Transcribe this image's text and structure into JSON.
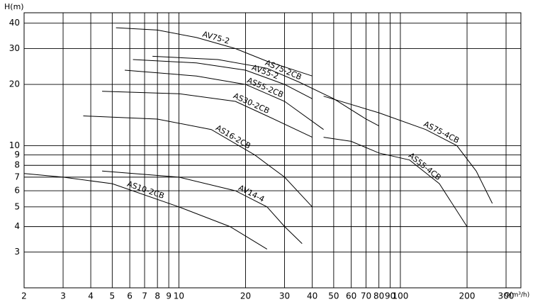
{
  "chart_data": {
    "type": "line",
    "x_label": "Q(m³/h)",
    "y_label": "H(m)",
    "log_x": true,
    "log_y": true,
    "grid": true,
    "color": "#000000",
    "xlim": [
      2,
      350
    ],
    "ylim": [
      2,
      45
    ],
    "xticks": [
      2,
      3,
      4,
      5,
      6,
      7,
      8,
      9,
      10,
      20,
      30,
      40,
      50,
      60,
      70,
      80,
      90,
      100,
      200,
      300
    ],
    "yticks": [
      3,
      4,
      5,
      6,
      7,
      8,
      9,
      10,
      20,
      30,
      40
    ],
    "series": [
      {
        "name": "AV75-2",
        "x": [
          5.2,
          8,
          12,
          18,
          25,
          40
        ],
        "values": [
          38,
          37,
          34,
          30,
          26,
          22
        ]
      },
      {
        "name": "AS75-2CB",
        "x": [
          7.6,
          15,
          25,
          35,
          50,
          70,
          80
        ],
        "values": [
          27.5,
          26.5,
          24,
          20.5,
          17,
          13.5,
          12.5
        ]
      },
      {
        "name": "AV55-2",
        "x": [
          6.2,
          12,
          20,
          30,
          40
        ],
        "values": [
          26.5,
          25.5,
          23.5,
          20,
          17
        ]
      },
      {
        "name": "AS55-2CB",
        "x": [
          5.7,
          12,
          20,
          30,
          45
        ],
        "values": [
          23.5,
          22,
          20,
          16.5,
          12
        ]
      },
      {
        "name": "AS30-2CB",
        "x": [
          4.5,
          10,
          18,
          25,
          40
        ],
        "values": [
          18.5,
          18,
          16.5,
          14,
          11
        ]
      },
      {
        "name": "AS16-2CB",
        "x": [
          3.7,
          8,
          14,
          22,
          30,
          40
        ],
        "values": [
          14,
          13.5,
          12,
          9,
          7,
          5
        ]
      },
      {
        "name": "AS75-4CB",
        "x": [
          45,
          80,
          130,
          180,
          220,
          260
        ],
        "values": [
          17.5,
          14.5,
          12,
          10,
          7.5,
          5.2
        ]
      },
      {
        "name": "AS55-4CB",
        "x": [
          45,
          60,
          80,
          110,
          150,
          200
        ],
        "values": [
          11,
          10.5,
          9.2,
          8.5,
          6.5,
          4
        ]
      },
      {
        "name": "AV14-4",
        "x": [
          4.5,
          10,
          18,
          25,
          30,
          36
        ],
        "values": [
          7.5,
          7,
          6,
          5,
          4,
          3.3
        ]
      },
      {
        "name": "AS10-2CB",
        "x": [
          2,
          3,
          5,
          10,
          17,
          25
        ],
        "values": [
          7.3,
          7,
          6.5,
          5,
          4,
          3.1
        ]
      }
    ]
  }
}
